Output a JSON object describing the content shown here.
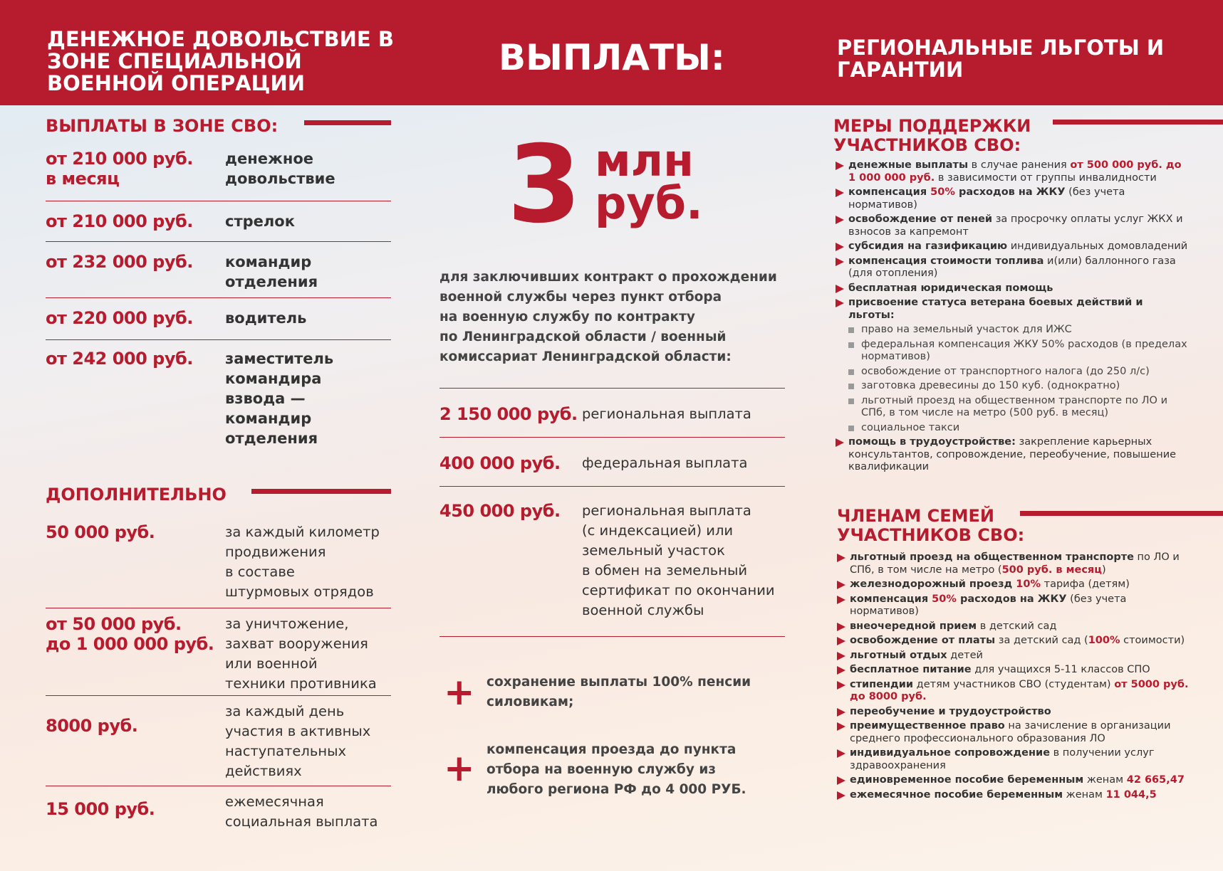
{
  "header": {
    "left": "ДЕНЕЖНОЕ ДОВОЛЬСТВИЕ В ЗОНЕ СПЕЦИАЛЬНОЙ ВОЕННОЙ ОПЕРАЦИИ",
    "center": "ВЫПЛАТЫ:",
    "right": "РЕГИОНАЛЬНЫЕ ЛЬГОТЫ И ГАРАНТИИ"
  },
  "left": {
    "svo_title": "ВЫПЛАТЫ В ЗОНЕ СВО:",
    "svo_rows": [
      {
        "amount": "от 210 000 руб.\nв месяц",
        "desc": "денежное\nдовольствие"
      },
      {
        "amount": "от 210 000 руб.",
        "desc": "стрелок"
      },
      {
        "amount": "от 232 000 руб.",
        "desc": "командир\nотделения"
      },
      {
        "amount": "от 220 000 руб.",
        "desc": "водитель"
      },
      {
        "amount": "от 242 000 руб.",
        "desc": "заместитель\nкомандира\nвзвода —\nкомандир\nотделения"
      }
    ],
    "extra_title": "ДОПОЛНИТЕЛЬНО",
    "extra_rows": [
      {
        "amount": "50 000 руб.",
        "desc": "за каждый километр\nпродвижения\nв составе\nштурмовых отрядов"
      },
      {
        "amount": "от 50 000 руб.\nдо 1 000 000 руб.",
        "desc": "за уничтожение,\nзахват вооружения\nили военной\nтехники противника"
      },
      {
        "amount": "8000 руб.",
        "desc": "за каждый день\nучастия в активных\nнаступательных\nдействиях"
      },
      {
        "amount": "15 000 руб.",
        "desc": "ежемесячная\nсоциальная выплата"
      }
    ]
  },
  "center": {
    "big_number": "3",
    "big_unit": "млн",
    "big_currency": "руб.",
    "intro": "для заключивших контракт о прохождении\nвоенной службы через пункт отбора\nна военную службу по контракту\nпо Ленинградской области / военный\nкомиссариат Ленинградской области:",
    "rows": [
      {
        "amount": "2 150 000 руб.",
        "desc": "региональная выплата"
      },
      {
        "amount": "400 000 руб.",
        "desc": "федеральная выплата"
      },
      {
        "amount": "450 000 руб.",
        "desc": "региональная выплата\n(с индексацией) или\nземельный участок\nв обмен на земельный\nсертификат по окончании\nвоенной службы"
      }
    ],
    "plus_sign": "+",
    "plus_items": [
      "сохранение выплаты 100% пенсии\nсиловикам;",
      "компенсация проезда до пункта\nотбора на военную службу из\nлюбого региона РФ до 4 000 РУБ."
    ]
  },
  "right": {
    "support_title": "МЕРЫ ПОДДЕРЖКИ\nУЧАСТНИКОВ СВО:",
    "support_items": [
      [
        [
          "b",
          "денежные выплаты"
        ],
        [
          "n",
          " в случае ранения "
        ],
        [
          "r",
          "от 500 000 руб. до 1 000 000 руб."
        ],
        [
          "n",
          " в зависимости от группы инвалидности"
        ]
      ],
      [
        [
          "b",
          "компенсация "
        ],
        [
          "r",
          "50%"
        ],
        [
          "b",
          " расходов на ЖКУ"
        ],
        [
          "n",
          " (без учета нормативов)"
        ]
      ],
      [
        [
          "b",
          "освобождение от пеней"
        ],
        [
          "n",
          " за просрочку оплаты услуг ЖКХ и взносов за капремонт"
        ]
      ],
      [
        [
          "b",
          "субсидия на газификацию"
        ],
        [
          "n",
          " индивидуальных домовладений"
        ]
      ],
      [
        [
          "b",
          "компенсация стоимости топлива"
        ],
        [
          "n",
          " и(или) баллонного газа (для отопления)"
        ]
      ],
      [
        [
          "b",
          "бесплатная юридическая помощь"
        ]
      ],
      [
        [
          "b",
          "присвоение статуса ветерана боевых действий и льготы:"
        ]
      ]
    ],
    "veteran_subitems": [
      "право на земельный участок для ИЖС",
      "федеральная компенсация ЖКУ 50% расходов (в пределах нормативов)",
      "освобождение от транспортного налога (до 250 л/с)",
      "заготовка древесины до 150 куб. (однократно)",
      "льготный проезд на общественном транспорте по ЛО и СПб, в том числе на метро (500 руб. в месяц)",
      "социальное такси"
    ],
    "employment_item": [
      [
        "b",
        "помощь в трудоустройстве:"
      ],
      [
        "n",
        " закрепление карьерных консультантов, сопровождение, переобучение, повышение квалификации"
      ]
    ],
    "family_title": "ЧЛЕНАМ СЕМЕЙ\nУЧАСТНИКОВ СВО:",
    "family_items": [
      [
        [
          "b",
          "льготный проезд на общественном транспорте"
        ],
        [
          "n",
          " по ЛО и СПб, в том числе на метро ("
        ],
        [
          "r",
          "500 руб. в месяц"
        ],
        [
          "n",
          ")"
        ]
      ],
      [
        [
          "b",
          "железнодорожный проезд "
        ],
        [
          "r",
          "10%"
        ],
        [
          "n",
          " тарифа (детям)"
        ]
      ],
      [
        [
          "b",
          "компенсация "
        ],
        [
          "r",
          "50%"
        ],
        [
          "b",
          " расходов на ЖКУ"
        ],
        [
          "n",
          " (без учета нормативов)"
        ]
      ],
      [
        [
          "b",
          "внеочередной прием"
        ],
        [
          "n",
          " в детский сад"
        ]
      ],
      [
        [
          "b",
          "освобождение от платы"
        ],
        [
          "n",
          " за детский сад ("
        ],
        [
          "r",
          "100%"
        ],
        [
          "n",
          " стоимости)"
        ]
      ],
      [
        [
          "b",
          "льготный отдых"
        ],
        [
          "n",
          " детей"
        ]
      ],
      [
        [
          "b",
          "бесплатное питание"
        ],
        [
          "n",
          " для учащихся 5-11 классов СПО"
        ]
      ],
      [
        [
          "b",
          "стипендии"
        ],
        [
          "n",
          " детям участников СВО (студентам) "
        ],
        [
          "r",
          "от 5000 руб. до 8000 руб."
        ]
      ],
      [
        [
          "b",
          "переобучение и трудоустройство"
        ]
      ],
      [
        [
          "b",
          "преимущественное право"
        ],
        [
          "n",
          " на зачисление в организации среднего профессионального образования ЛО"
        ]
      ],
      [
        [
          "b",
          "индивидуальное сопровождение"
        ],
        [
          "n",
          " в получении услуг здравоохранения"
        ]
      ],
      [
        [
          "b",
          "единовременное пособие беременным"
        ],
        [
          "n",
          " женам "
        ],
        [
          "r",
          "42 665,47"
        ]
      ],
      [
        [
          "b",
          "ежемесячное пособие беременным"
        ],
        [
          "n",
          " женам "
        ],
        [
          "r",
          "11 044,5"
        ]
      ]
    ]
  },
  "colors": {
    "brand_red": "#b71c2e"
  }
}
